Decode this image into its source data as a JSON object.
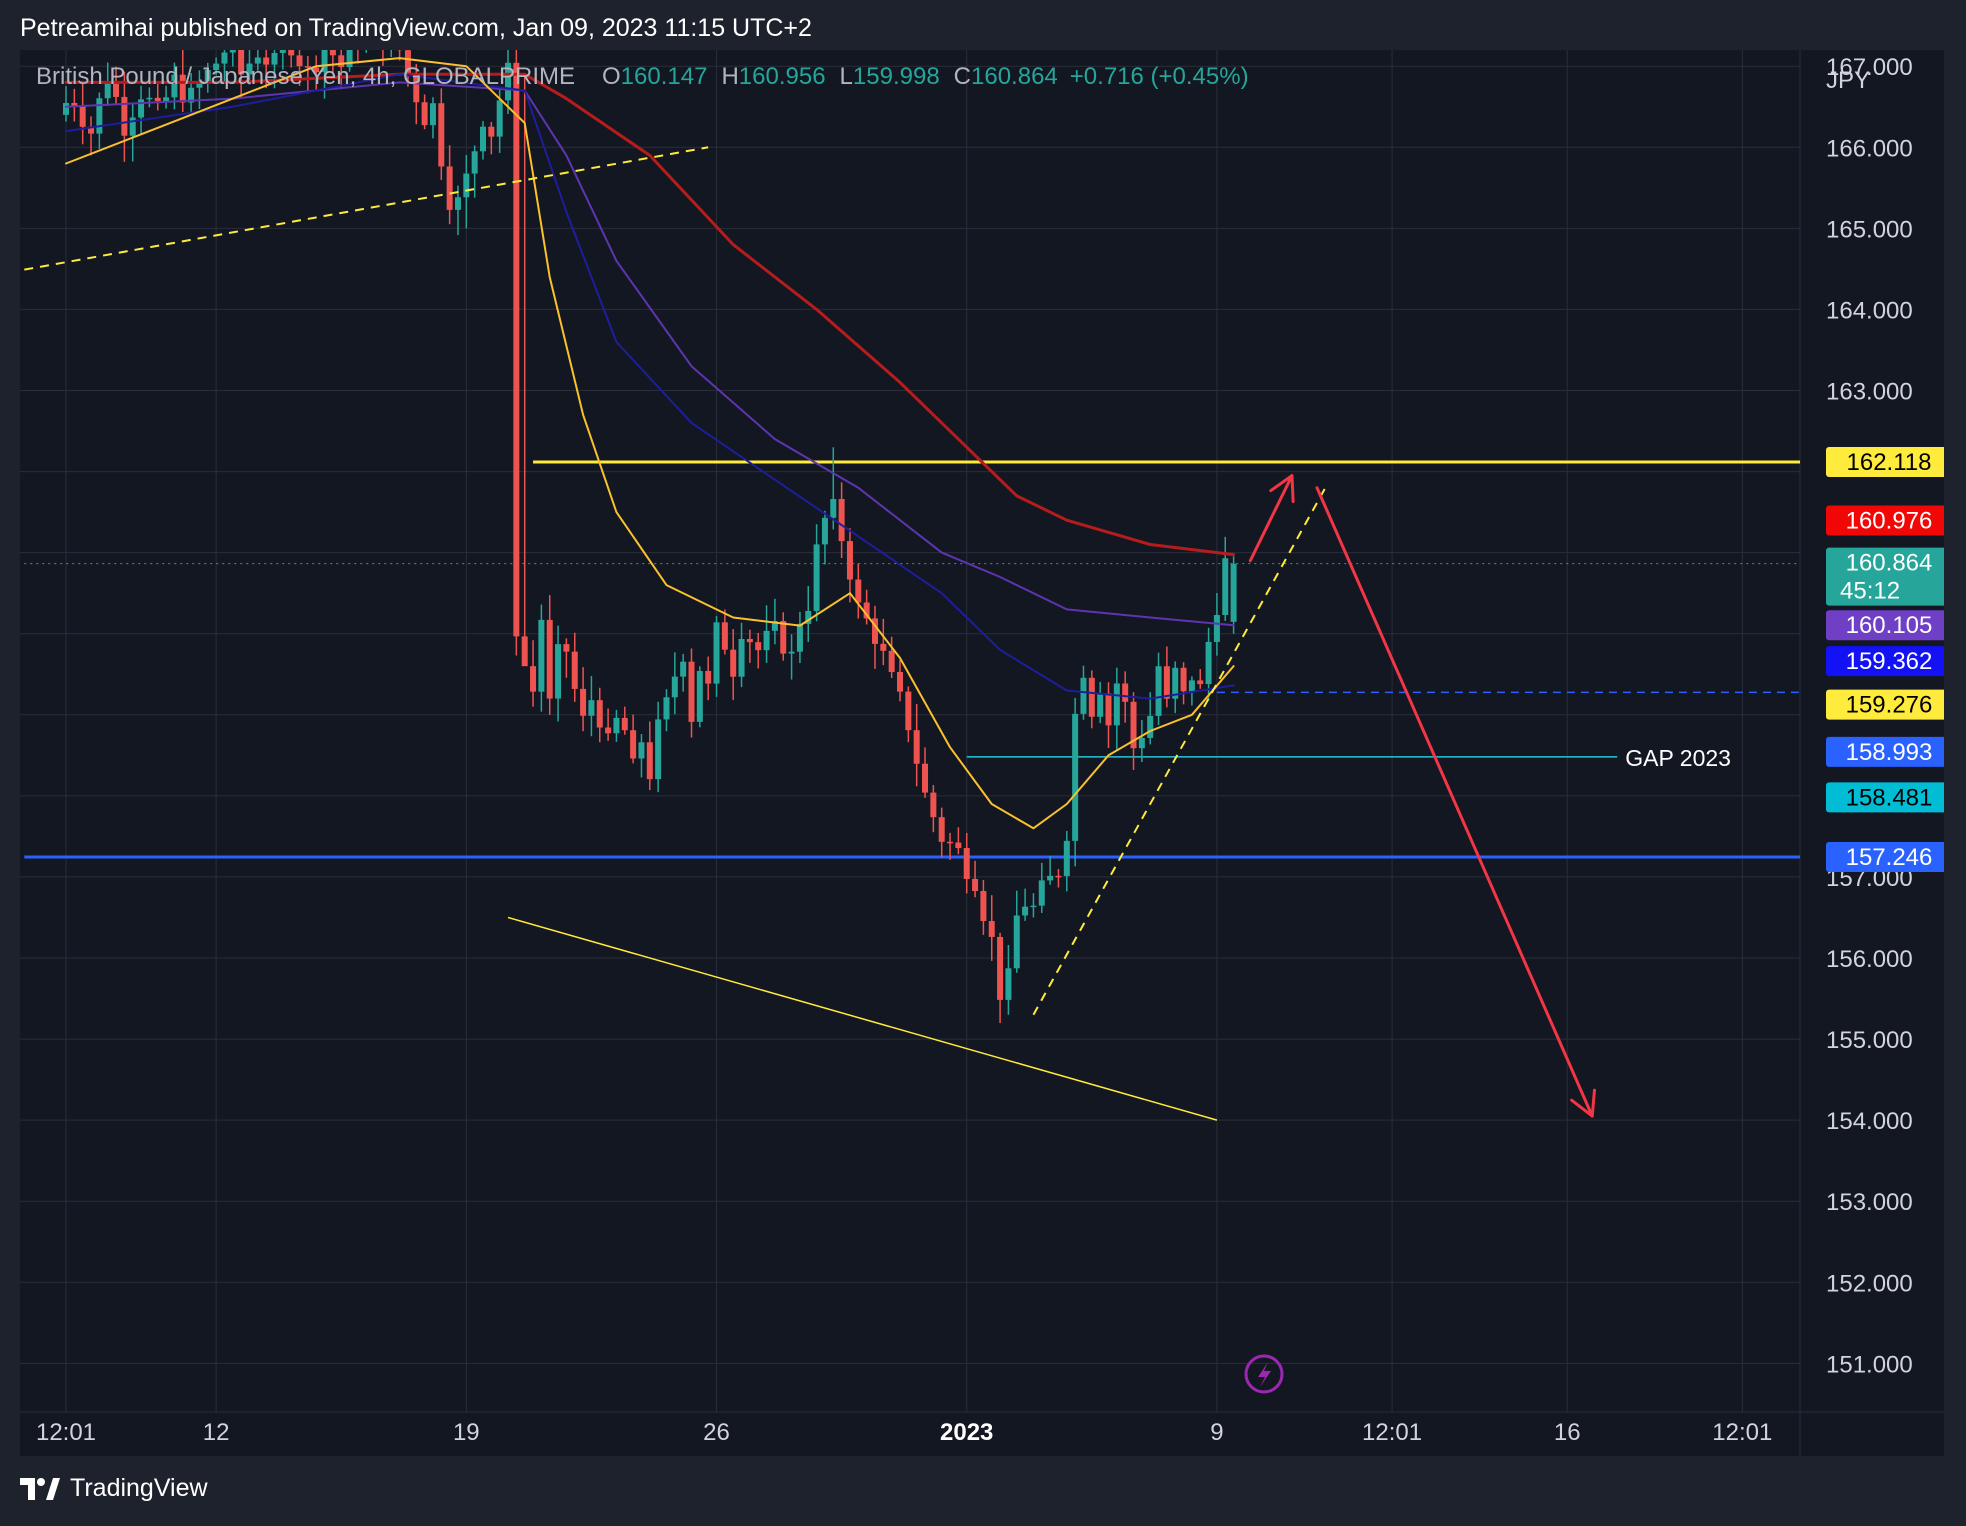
{
  "header": {
    "published_text": "Petreamihai published on TradingView.com, Jan 09, 2023 11:15 UTC+2"
  },
  "footer": {
    "brand": "TradingView",
    "logo_icon": "tradingview-logo-icon"
  },
  "legend": {
    "symbol": "British Pound / Japanese Yen, 4h, GLOBALPRIME",
    "o_label": "O",
    "o_value": "160.147",
    "h_label": "H",
    "h_value": "160.956",
    "l_label": "L",
    "l_value": "159.998",
    "c_label": "C",
    "c_value": "160.864",
    "change": "+0.716 (+0.45%)"
  },
  "currency_label": "JPY",
  "alert_icon": "lightning-icon",
  "chart_data": {
    "type": "candlestick",
    "ylim": [
      150.4,
      167.2
    ],
    "y_ticks": [
      151,
      152,
      153,
      154,
      155,
      156,
      157,
      158,
      159,
      160,
      161,
      162,
      163,
      164,
      165,
      166,
      167
    ],
    "y_tick_labels": [
      "151.000",
      "152.000",
      "153.000",
      "154.000",
      "155.000",
      "156.000",
      "157.000",
      "",
      "",
      "",
      "",
      "",
      "163.000",
      "164.000",
      "165.000",
      "166.000",
      "167.000"
    ],
    "x_labels": [
      {
        "text": "12:01",
        "bar": 0
      },
      {
        "text": "12",
        "bar": 18
      },
      {
        "text": "19",
        "bar": 48
      },
      {
        "text": "26",
        "bar": 78
      },
      {
        "text": "2023",
        "bar": 108,
        "bold": true
      },
      {
        "text": "9",
        "bar": 138
      },
      {
        "text": "12:01",
        "bar": 159
      },
      {
        "text": "16",
        "bar": 180
      },
      {
        "text": "12:01",
        "bar": 201
      }
    ],
    "candles": {
      "key_points": [
        [
          0,
          166.5
        ],
        [
          2,
          166.6
        ],
        [
          4,
          166.2
        ],
        [
          6,
          166.9
        ],
        [
          8,
          166.3
        ],
        [
          10,
          166.7
        ],
        [
          12,
          166.4
        ],
        [
          14,
          166.8
        ],
        [
          16,
          166.6
        ],
        [
          18,
          166.9
        ],
        [
          20,
          167.2
        ],
        [
          22,
          166.9
        ],
        [
          24,
          167.2
        ],
        [
          26,
          167.0
        ],
        [
          28,
          167.3
        ],
        [
          30,
          166.9
        ],
        [
          32,
          167.3
        ],
        [
          34,
          167.0
        ],
        [
          36,
          167.4
        ],
        [
          38,
          167.2
        ],
        [
          40,
          167.5
        ],
        [
          42,
          166.9
        ],
        [
          44,
          166.4
        ],
        [
          45,
          166.5
        ],
        [
          46,
          165.9
        ],
        [
          47,
          165.4
        ],
        [
          48,
          165.3
        ],
        [
          49,
          165.6
        ],
        [
          50,
          166.0
        ],
        [
          51,
          166.4
        ],
        [
          52,
          166.2
        ],
        [
          53,
          166.6
        ],
        [
          54,
          166.9
        ],
        [
          55,
          160.1
        ],
        [
          56,
          159.6
        ],
        [
          57,
          159.3
        ],
        [
          58,
          160.2
        ],
        [
          59,
          159.1
        ],
        [
          60,
          159.7
        ],
        [
          61,
          159.8
        ],
        [
          62,
          159.3
        ],
        [
          63,
          158.9
        ],
        [
          64,
          159.2
        ],
        [
          65,
          159.0
        ],
        [
          66,
          158.6
        ],
        [
          67,
          158.9
        ],
        [
          68,
          158.8
        ],
        [
          69,
          158.3
        ],
        [
          70,
          158.7
        ],
        [
          71,
          158.3
        ],
        [
          72,
          158.8
        ],
        [
          73,
          159.1
        ],
        [
          74,
          159.5
        ],
        [
          75,
          159.8
        ],
        [
          76,
          159.0
        ],
        [
          77,
          159.6
        ],
        [
          78,
          159.3
        ],
        [
          79,
          160.0
        ],
        [
          80,
          159.9
        ],
        [
          81,
          159.6
        ],
        [
          82,
          160.1
        ],
        [
          84,
          159.8
        ],
        [
          86,
          160.0
        ],
        [
          87,
          159.9
        ],
        [
          88,
          159.7
        ],
        [
          89,
          160.2
        ],
        [
          90,
          160.4
        ],
        [
          91,
          161.0
        ],
        [
          92,
          161.4
        ],
        [
          93,
          161.5
        ],
        [
          94,
          161.2
        ],
        [
          95,
          160.8
        ],
        [
          96,
          160.3
        ],
        [
          98,
          160.0
        ],
        [
          100,
          159.4
        ],
        [
          102,
          158.9
        ],
        [
          104,
          158.0
        ],
        [
          106,
          157.5
        ],
        [
          108,
          157.3
        ],
        [
          110,
          157.0
        ],
        [
          111,
          156.6
        ],
        [
          112,
          156.2
        ],
        [
          113,
          155.6
        ],
        [
          114,
          155.7
        ],
        [
          115,
          156.5
        ],
        [
          116,
          156.7
        ],
        [
          117,
          156.6
        ],
        [
          118,
          156.8
        ],
        [
          120,
          157.1
        ],
        [
          121,
          157.6
        ],
        [
          122,
          159.0
        ],
        [
          123,
          159.6
        ],
        [
          124,
          159.1
        ],
        [
          125,
          159.4
        ],
        [
          126,
          158.9
        ],
        [
          127,
          159.4
        ],
        [
          128,
          159.1
        ],
        [
          129,
          158.6
        ],
        [
          130,
          158.8
        ],
        [
          131,
          159.0
        ],
        [
          132,
          159.6
        ],
        [
          133,
          159.1
        ],
        [
          134,
          159.5
        ],
        [
          135,
          159.2
        ],
        [
          136,
          159.5
        ],
        [
          137,
          159.3
        ],
        [
          138,
          159.9
        ],
        [
          139,
          160.4
        ],
        [
          140,
          160.86
        ]
      ],
      "last_open": 160.147,
      "last_high": 160.956,
      "last_low": 159.998,
      "last_close": 160.864,
      "bull_color": "#26a69a",
      "bear_color": "#ef5350"
    },
    "moving_averages": [
      {
        "color": "#b71c1c",
        "width": 3,
        "points": [
          [
            0,
            166.8
          ],
          [
            20,
            166.8
          ],
          [
            40,
            166.9
          ],
          [
            55,
            166.9
          ],
          [
            60,
            166.6
          ],
          [
            70,
            165.9
          ],
          [
            80,
            164.8
          ],
          [
            90,
            164.0
          ],
          [
            100,
            163.1
          ],
          [
            108,
            162.3
          ],
          [
            114,
            161.7
          ],
          [
            120,
            161.4
          ],
          [
            130,
            161.1
          ],
          [
            140,
            160.976
          ]
        ]
      },
      {
        "color": "#5e35b1",
        "width": 2,
        "points": [
          [
            0,
            166.5
          ],
          [
            20,
            166.6
          ],
          [
            40,
            166.8
          ],
          [
            55,
            166.7
          ],
          [
            60,
            165.9
          ],
          [
            66,
            164.6
          ],
          [
            75,
            163.3
          ],
          [
            85,
            162.4
          ],
          [
            95,
            161.8
          ],
          [
            105,
            161.0
          ],
          [
            112,
            160.7
          ],
          [
            120,
            160.3
          ],
          [
            130,
            160.2
          ],
          [
            140,
            160.105
          ]
        ]
      },
      {
        "color": "#1e1e9a",
        "width": 2,
        "points": [
          [
            0,
            166.2
          ],
          [
            20,
            166.5
          ],
          [
            40,
            166.9
          ],
          [
            55,
            166.7
          ],
          [
            60,
            165.2
          ],
          [
            66,
            163.6
          ],
          [
            75,
            162.6
          ],
          [
            85,
            161.9
          ],
          [
            95,
            161.2
          ],
          [
            105,
            160.5
          ],
          [
            112,
            159.8
          ],
          [
            120,
            159.3
          ],
          [
            130,
            159.2
          ],
          [
            140,
            159.362
          ]
        ]
      },
      {
        "color": "#fbc02d",
        "width": 2,
        "points": [
          [
            0,
            165.8
          ],
          [
            10,
            166.2
          ],
          [
            20,
            166.6
          ],
          [
            30,
            167.0
          ],
          [
            40,
            167.1
          ],
          [
            48,
            167.0
          ],
          [
            55,
            166.3
          ],
          [
            58,
            164.4
          ],
          [
            62,
            162.7
          ],
          [
            66,
            161.5
          ],
          [
            72,
            160.6
          ],
          [
            80,
            160.2
          ],
          [
            88,
            160.1
          ],
          [
            94,
            160.5
          ],
          [
            100,
            159.7
          ],
          [
            106,
            158.6
          ],
          [
            111,
            157.9
          ],
          [
            116,
            157.6
          ],
          [
            120,
            157.9
          ],
          [
            125,
            158.5
          ],
          [
            130,
            158.8
          ],
          [
            135,
            159.0
          ],
          [
            140,
            159.6
          ]
        ]
      }
    ],
    "annotations": [
      {
        "type": "hline",
        "from_bar": 56,
        "to_bar": 210,
        "price": 162.118,
        "color": "#ffeb3b",
        "width": 3
      },
      {
        "type": "hline",
        "from_bar": -5,
        "to_bar": 210,
        "price": 157.246,
        "color": "#2962ff",
        "width": 3
      },
      {
        "type": "hline",
        "from_bar": 108,
        "to_bar": 186,
        "price": 158.481,
        "color": "#26c6da",
        "width": 1.5,
        "label": "GAP 2023"
      },
      {
        "type": "hline_dashed",
        "from_bar": 138,
        "to_bar": 210,
        "price": 159.276,
        "color": "#2962ff",
        "width": 1.5
      },
      {
        "type": "hline_dotted",
        "from_bar": -5,
        "to_bar": 210,
        "price": 160.864,
        "color": "#26a69a",
        "width": 1
      },
      {
        "type": "trend_dashed",
        "from": [
          -5,
          164.5
        ],
        "to": [
          77,
          166.0
        ],
        "color": "#ffeb3b",
        "width": 2
      },
      {
        "type": "trend",
        "from": [
          53,
          156.5
        ],
        "to": [
          138,
          154.0
        ],
        "color": "#ffeb3b",
        "width": 1.5
      },
      {
        "type": "trend_dashed",
        "from": [
          116,
          155.3
        ],
        "to": [
          151,
          161.8
        ],
        "color": "#ffeb3b",
        "width": 2
      },
      {
        "type": "arrow",
        "from": [
          142,
          160.9
        ],
        "to": [
          147,
          161.95
        ],
        "color": "#f23645",
        "width": 3
      },
      {
        "type": "arrow",
        "from": [
          150,
          161.8
        ],
        "to": [
          183,
          154.05
        ],
        "color": "#f23645",
        "width": 3
      }
    ],
    "price_tags": [
      {
        "value": "162.118",
        "price": 162.118,
        "bg": "#ffeb3b",
        "fg": "#000000"
      },
      {
        "value": "160.976",
        "price": 160.976,
        "bg": "#f20707",
        "fg": "#ffffff",
        "offset": -0.42
      },
      {
        "value": "160.864",
        "sub": "45:12",
        "price": 160.864,
        "bg": "#26a69a",
        "fg": "#ffffff",
        "double": true
      },
      {
        "value": "160.105",
        "price": 160.105,
        "bg": "#6f3fc6",
        "fg": "#ffffff"
      },
      {
        "value": "159.362",
        "price": 159.362,
        "bg": "#1212f5",
        "fg": "#ffffff",
        "offset": -0.3
      },
      {
        "value": "159.276",
        "price": 159.276,
        "bg": "#ffeb3b",
        "fg": "#000000",
        "offset": 0.15
      },
      {
        "value": "158.993",
        "price": 158.993,
        "bg": "#2962ff",
        "fg": "#ffffff",
        "offset": 0.45
      },
      {
        "value": "158.481",
        "price": 158.481,
        "bg": "#00bcd4",
        "fg": "#000000",
        "offset": 0.5
      },
      {
        "value": "157.246",
        "price": 157.246,
        "bg": "#2962ff",
        "fg": "#ffffff"
      }
    ]
  }
}
